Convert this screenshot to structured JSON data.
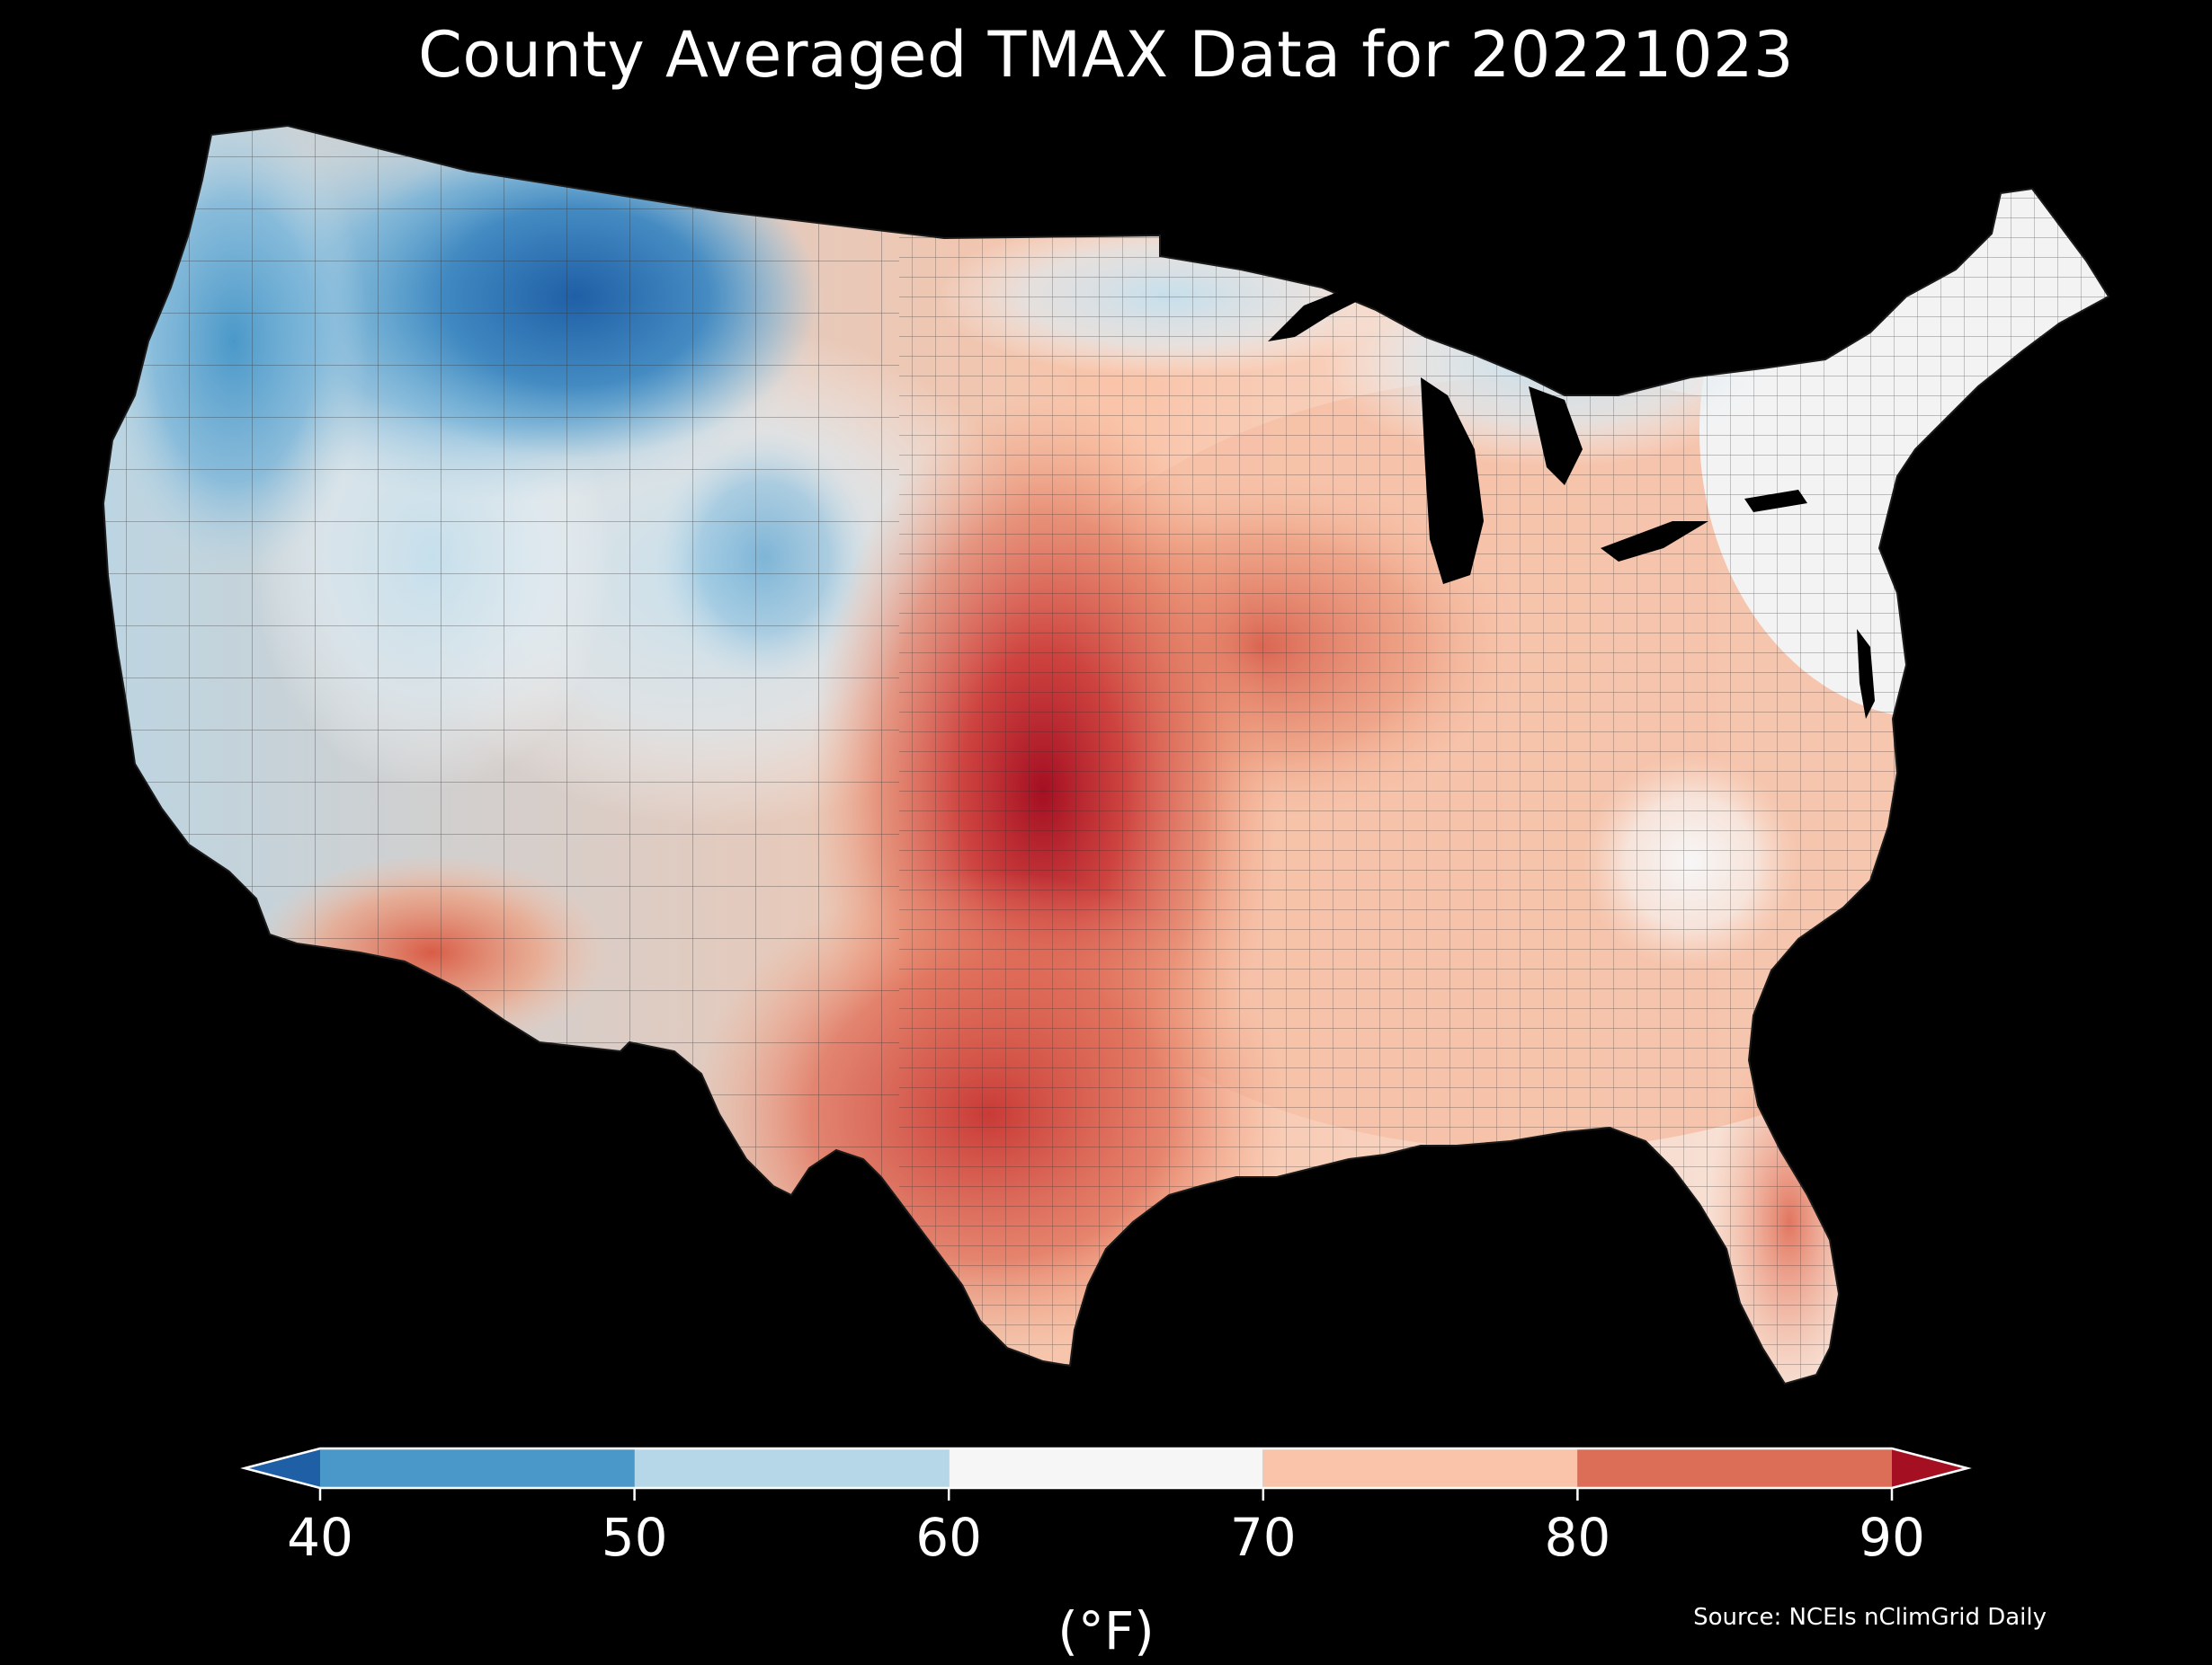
{
  "title": "County Averaged TMAX Data for 20221023",
  "colorbar": {
    "ticks": [
      "40",
      "50",
      "60",
      "70",
      "80",
      "90"
    ],
    "unit": "(°F)",
    "bins": [
      {
        "from": 40,
        "to": 50,
        "color": "#4a98c9"
      },
      {
        "from": 50,
        "to": 60,
        "color": "#b6d7e8"
      },
      {
        "from": 60,
        "to": 70,
        "color": "#f6f6f6"
      },
      {
        "from": 70,
        "to": 80,
        "color": "#f9c4a9"
      },
      {
        "from": 80,
        "to": 90,
        "color": "#dc6e57"
      }
    ],
    "under_color": "#1f5fa6",
    "over_color": "#a50f22"
  },
  "source": "Source: NCEIs nClimGrid Daily",
  "map": {
    "background": "#000000",
    "county_border_color": "#2a2a2a",
    "lake_color": "#000000",
    "regional_tmax": [
      {
        "region": "Northern Rockies / Montana",
        "tmax_f": 42
      },
      {
        "region": "Pacific Northwest",
        "tmax_f": 50
      },
      {
        "region": "Great Basin / Colorado",
        "tmax_f": 58
      },
      {
        "region": "Upper Midwest / Great Lakes",
        "tmax_f": 62
      },
      {
        "region": "New England",
        "tmax_f": 64
      },
      {
        "region": "Southern Plains / Oklahoma",
        "tmax_f": 88
      },
      {
        "region": "Kansas / Missouri",
        "tmax_f": 82
      },
      {
        "region": "Texas",
        "tmax_f": 84
      },
      {
        "region": "Desert Southwest",
        "tmax_f": 80
      },
      {
        "region": "Southeast / Florida",
        "tmax_f": 76
      },
      {
        "region": "Appalachians",
        "tmax_f": 66
      }
    ]
  }
}
